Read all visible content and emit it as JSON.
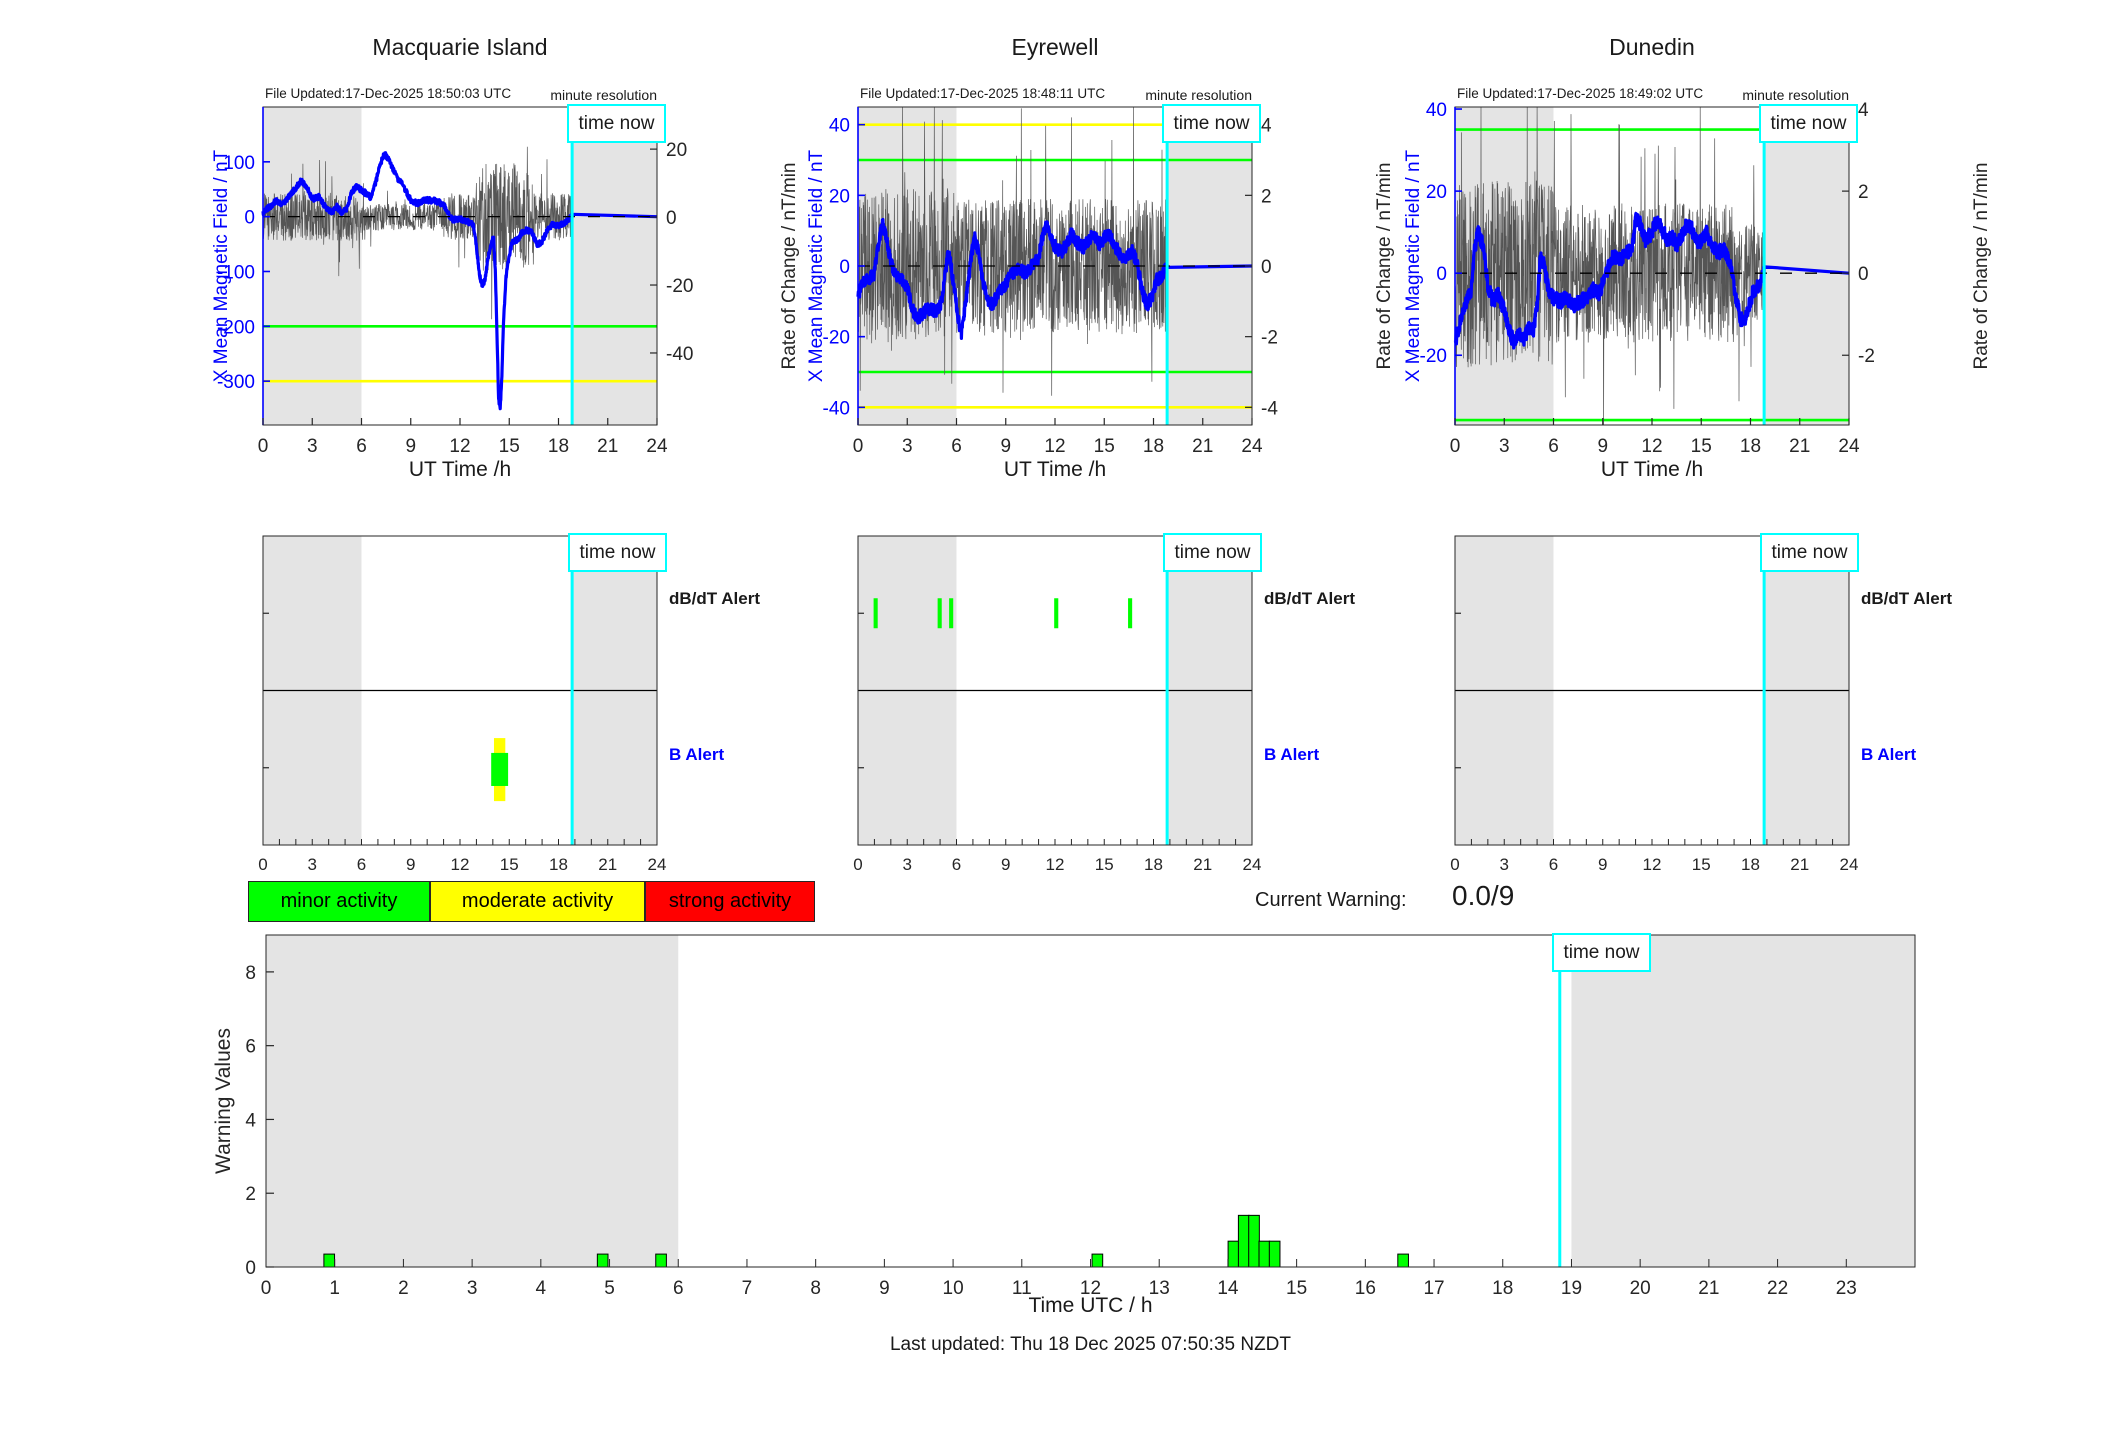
{
  "chart_data": {
    "type": [
      "line",
      "line",
      "line",
      "bar"
    ],
    "time_now_label": "time now",
    "stations": [
      {
        "title": "Macquarie Island",
        "file_updated": "File Updated:17-Dec-2025 18:50:03 UTC",
        "resolution_note": "minute resolution",
        "time_now_hour": 18.83,
        "x_axis": {
          "label": "UT Time /h",
          "min": 0,
          "max": 24,
          "ticks": [
            0,
            3,
            6,
            9,
            12,
            15,
            18,
            21,
            24
          ]
        },
        "left_axis": {
          "label": "X Mean Magnetic Field / nT",
          "color": "#0000ff",
          "min": -380,
          "max": 200,
          "ticks": [
            100,
            0,
            -100,
            -200,
            -300
          ]
        },
        "right_axis": {
          "label": "Rate of Change / nT/min",
          "min": -61.2,
          "max": 32.4,
          "ticks": [
            20,
            0,
            -20,
            -40
          ]
        },
        "shaded_hours": [
          [
            0,
            6
          ],
          [
            18.83,
            24
          ]
        ],
        "thresholds": [
          {
            "value": -200,
            "color": "#00ff00"
          },
          {
            "value": -300,
            "color": "#ffff00"
          }
        ],
        "series_blue": [
          [
            0,
            8
          ],
          [
            0.4,
            18
          ],
          [
            0.8,
            28
          ],
          [
            1.2,
            22
          ],
          [
            1.6,
            38
          ],
          [
            2,
            52
          ],
          [
            2.3,
            65
          ],
          [
            2.6,
            58
          ],
          [
            3,
            32
          ],
          [
            3.4,
            36
          ],
          [
            3.8,
            18
          ],
          [
            4.2,
            8
          ],
          [
            4.5,
            18
          ],
          [
            4.8,
            8
          ],
          [
            5.1,
            14
          ],
          [
            5.4,
            45
          ],
          [
            5.7,
            55
          ],
          [
            6,
            48
          ],
          [
            6.3,
            42
          ],
          [
            6.6,
            34
          ],
          [
            7,
            78
          ],
          [
            7.2,
            100
          ],
          [
            7.4,
            115
          ],
          [
            7.6,
            106
          ],
          [
            7.9,
            88
          ],
          [
            8.2,
            70
          ],
          [
            8.5,
            58
          ],
          [
            9,
            30
          ],
          [
            9.4,
            24
          ],
          [
            9.8,
            30
          ],
          [
            10.2,
            30
          ],
          [
            10.6,
            28
          ],
          [
            11,
            22
          ],
          [
            11.3,
            4
          ],
          [
            11.6,
            -6
          ],
          [
            12,
            -4
          ],
          [
            12.4,
            -8
          ],
          [
            12.8,
            -14
          ],
          [
            13,
            -55
          ],
          [
            13.2,
            -108
          ],
          [
            13.35,
            -125
          ],
          [
            13.5,
            -118
          ],
          [
            13.7,
            -78
          ],
          [
            13.9,
            -48
          ],
          [
            14.05,
            -38
          ],
          [
            14.15,
            -95
          ],
          [
            14.25,
            -210
          ],
          [
            14.35,
            -330
          ],
          [
            14.45,
            -352
          ],
          [
            14.55,
            -290
          ],
          [
            14.65,
            -190
          ],
          [
            14.8,
            -110
          ],
          [
            15,
            -70
          ],
          [
            15.2,
            -45
          ],
          [
            15.5,
            -42
          ],
          [
            15.8,
            -28
          ],
          [
            16.1,
            -24
          ],
          [
            16.4,
            -30
          ],
          [
            16.7,
            -52
          ],
          [
            17,
            -45
          ],
          [
            17.3,
            -26
          ],
          [
            17.6,
            -14
          ],
          [
            18,
            -16
          ],
          [
            18.4,
            -10
          ],
          [
            18.83,
            0
          ]
        ],
        "blue_jitter": 5,
        "noise_envelope": [
          [
            0,
            6,
            7
          ],
          [
            6,
            11,
            4
          ],
          [
            11,
            13,
            7
          ],
          [
            13,
            16.5,
            16
          ],
          [
            16.5,
            18.83,
            7
          ]
        ],
        "alerts": {
          "dbdt_label": "dB/dT Alert",
          "b_label": "B Alert",
          "dbdt_marks": [],
          "b_marks": [
            {
              "start": 14.07,
              "end": 14.76,
              "color": "#ffff00",
              "y0": 0.654,
              "y1": 0.858
            },
            {
              "start": 13.9,
              "end": 14.93,
              "color": "#00ff00",
              "y0": 0.702,
              "y1": 0.809
            }
          ]
        }
      },
      {
        "title": "Eyrewell",
        "file_updated": "File Updated:17-Dec-2025 18:48:11 UTC",
        "resolution_note": "minute resolution",
        "time_now_hour": 18.83,
        "x_axis": {
          "label": "UT Time /h",
          "min": 0,
          "max": 24,
          "ticks": [
            0,
            3,
            6,
            9,
            12,
            15,
            18,
            21,
            24
          ]
        },
        "left_axis": {
          "label": "X Mean Magnetic Field / nT",
          "color": "#0000ff",
          "min": -45,
          "max": 45,
          "ticks": [
            40,
            20,
            0,
            -20,
            -40
          ]
        },
        "right_axis": {
          "label": "Rate of Change / nT/min",
          "min": -4.5,
          "max": 4.5,
          "ticks": [
            4,
            2,
            0,
            -2,
            -4
          ]
        },
        "shaded_hours": [
          [
            0,
            6
          ],
          [
            18.83,
            24
          ]
        ],
        "thresholds": [
          {
            "value": 40,
            "color": "#ffff00"
          },
          {
            "value": 30,
            "color": "#00ff00"
          },
          {
            "value": -30,
            "color": "#00ff00"
          },
          {
            "value": -40,
            "color": "#ffff00"
          }
        ],
        "series_blue": [
          [
            0,
            -8
          ],
          [
            0.3,
            -5
          ],
          [
            0.6,
            -4
          ],
          [
            1,
            -2
          ],
          [
            1.3,
            8
          ],
          [
            1.5,
            12
          ],
          [
            1.7,
            9
          ],
          [
            2,
            1
          ],
          [
            2.3,
            -3
          ],
          [
            2.7,
            -4
          ],
          [
            3,
            -6
          ],
          [
            3.3,
            -12
          ],
          [
            3.6,
            -15
          ],
          [
            4,
            -13
          ],
          [
            4.4,
            -12
          ],
          [
            4.8,
            -13
          ],
          [
            5.1,
            -10
          ],
          [
            5.3,
            -3
          ],
          [
            5.5,
            4
          ],
          [
            5.7,
            -1
          ],
          [
            5.9,
            -8
          ],
          [
            6.1,
            -15
          ],
          [
            6.3,
            -19
          ],
          [
            6.6,
            -9
          ],
          [
            6.9,
            3
          ],
          [
            7.1,
            8
          ],
          [
            7.3,
            5
          ],
          [
            7.6,
            -4
          ],
          [
            7.9,
            -10
          ],
          [
            8.2,
            -11
          ],
          [
            8.5,
            -8
          ],
          [
            9,
            -5
          ],
          [
            9.4,
            -2
          ],
          [
            9.8,
            -1
          ],
          [
            10.2,
            -2
          ],
          [
            10.6,
            0
          ],
          [
            11,
            2
          ],
          [
            11.3,
            10
          ],
          [
            11.5,
            12
          ],
          [
            11.8,
            7
          ],
          [
            12.1,
            5
          ],
          [
            12.4,
            4
          ],
          [
            12.7,
            6
          ],
          [
            13,
            9
          ],
          [
            13.3,
            7
          ],
          [
            13.7,
            5
          ],
          [
            14,
            7
          ],
          [
            14.3,
            9
          ],
          [
            14.7,
            6
          ],
          [
            15,
            8
          ],
          [
            15.3,
            9
          ],
          [
            15.6,
            6
          ],
          [
            16,
            3
          ],
          [
            16.3,
            2
          ],
          [
            16.7,
            4
          ],
          [
            17,
            1
          ],
          [
            17.3,
            -7
          ],
          [
            17.6,
            -11
          ],
          [
            17.9,
            -9
          ],
          [
            18.2,
            -4
          ],
          [
            18.5,
            -3
          ],
          [
            18.83,
            0
          ]
        ],
        "blue_jitter": 1.8,
        "noise_envelope": [
          [
            0,
            6,
            2.2
          ],
          [
            6,
            18.83,
            1.9
          ]
        ],
        "alerts": {
          "dbdt_label": "dB/dT Alert",
          "b_label": "B Alert",
          "dbdt_marks": [
            {
              "start": 0.95,
              "end": 1.2
            },
            {
              "start": 4.85,
              "end": 5.1
            },
            {
              "start": 5.55,
              "end": 5.8
            },
            {
              "start": 11.95,
              "end": 12.2
            },
            {
              "start": 16.45,
              "end": 16.7
            }
          ],
          "b_marks": []
        }
      },
      {
        "title": "Dunedin",
        "file_updated": "File Updated:17-Dec-2025 18:49:02 UTC",
        "resolution_note": "minute resolution",
        "time_now_hour": 18.83,
        "x_axis": {
          "label": "UT Time /h",
          "min": 0,
          "max": 24,
          "ticks": [
            0,
            3,
            6,
            9,
            12,
            15,
            18,
            21,
            24
          ]
        },
        "left_axis": {
          "label": "X Mean Magnetic Field / nT",
          "color": "#0000ff",
          "min": -37,
          "max": 40.5,
          "ticks": [
            40,
            20,
            0,
            -20
          ]
        },
        "right_axis": {
          "label": "Rate of Change / nT/min",
          "min": -3.7,
          "max": 4.05,
          "ticks": [
            4,
            2,
            0,
            -2
          ]
        },
        "shaded_hours": [
          [
            0,
            6
          ],
          [
            18.83,
            24
          ]
        ],
        "thresholds": [
          {
            "value": 35,
            "color": "#00ff00"
          },
          {
            "value": -35.8,
            "color": "#00ff00"
          }
        ],
        "series_blue": [
          [
            0,
            -17
          ],
          [
            0.3,
            -12
          ],
          [
            0.6,
            -8
          ],
          [
            1,
            -4
          ],
          [
            1.2,
            6
          ],
          [
            1.4,
            10
          ],
          [
            1.7,
            7
          ],
          [
            2,
            -3
          ],
          [
            2.3,
            -7
          ],
          [
            2.6,
            -5
          ],
          [
            3,
            -9
          ],
          [
            3.3,
            -14
          ],
          [
            3.6,
            -17
          ],
          [
            3.9,
            -15
          ],
          [
            4.2,
            -16
          ],
          [
            4.5,
            -13
          ],
          [
            4.8,
            -14
          ],
          [
            5,
            -8
          ],
          [
            5.2,
            4
          ],
          [
            5.4,
            2
          ],
          [
            5.7,
            -4
          ],
          [
            6,
            -6
          ],
          [
            6.4,
            -7
          ],
          [
            6.8,
            -6
          ],
          [
            7.2,
            -8
          ],
          [
            7.6,
            -7
          ],
          [
            8,
            -6
          ],
          [
            8.4,
            -4
          ],
          [
            8.8,
            -5
          ],
          [
            9.2,
            0
          ],
          [
            9.6,
            4
          ],
          [
            10,
            3
          ],
          [
            10.4,
            5
          ],
          [
            10.8,
            6
          ],
          [
            11,
            13
          ],
          [
            11.3,
            12
          ],
          [
            11.6,
            8
          ],
          [
            12,
            10
          ],
          [
            12.3,
            13
          ],
          [
            12.6,
            11
          ],
          [
            12.9,
            8
          ],
          [
            13.2,
            9
          ],
          [
            13.5,
            7
          ],
          [
            13.8,
            9
          ],
          [
            14.1,
            12
          ],
          [
            14.4,
            11
          ],
          [
            14.7,
            8
          ],
          [
            15,
            8
          ],
          [
            15.3,
            10
          ],
          [
            15.6,
            7
          ],
          [
            16,
            5
          ],
          [
            16.4,
            6
          ],
          [
            16.8,
            2
          ],
          [
            17.1,
            -6
          ],
          [
            17.4,
            -11
          ],
          [
            17.6,
            -12
          ],
          [
            17.9,
            -8
          ],
          [
            18.2,
            -4
          ],
          [
            18.5,
            -3
          ],
          [
            18.83,
            0
          ]
        ],
        "blue_jitter": 1.8,
        "noise_envelope": [
          [
            0,
            6,
            2.3
          ],
          [
            6,
            17,
            1.7
          ],
          [
            17,
            18.83,
            1.2
          ]
        ],
        "alerts": {
          "dbdt_label": "dB/dT Alert",
          "b_label": "B Alert",
          "dbdt_marks": [],
          "b_marks": []
        }
      }
    ],
    "alert_panel_x_ticks": [
      0,
      3,
      6,
      9,
      12,
      15,
      18,
      21,
      24
    ],
    "legend": [
      {
        "label": "minor activity",
        "color": "#00ff00"
      },
      {
        "label": "moderate activity",
        "color": "#ffff00"
      },
      {
        "label": "strong activity",
        "color": "#ff0000"
      }
    ],
    "current_warning": {
      "label": "Current Warning:",
      "value": "0.0/9"
    },
    "warning_chart": {
      "type": "bar",
      "ylabel": "Warning Values",
      "xlabel": "Time UTC / h",
      "ylim": [
        0,
        9
      ],
      "y_ticks": [
        0,
        2,
        4,
        6,
        8
      ],
      "xlim": [
        0,
        24
      ],
      "x_tick_labels": [
        0,
        1,
        2,
        3,
        4,
        5,
        6,
        7,
        8,
        9,
        10,
        11,
        12,
        13,
        14,
        15,
        16,
        17,
        18,
        19,
        20,
        21,
        22,
        23
      ],
      "time_now_hour": 18.83,
      "time_now_label": "time now",
      "shaded_hours": [
        [
          0,
          6
        ],
        [
          19,
          24
        ]
      ],
      "bar_color": "#00ff00",
      "bar_width_hours": 0.155,
      "bars": [
        {
          "hour": 0.92,
          "value": 0.35
        },
        {
          "hour": 4.9,
          "value": 0.35
        },
        {
          "hour": 5.75,
          "value": 0.35
        },
        {
          "hour": 12.1,
          "value": 0.35
        },
        {
          "hour": 14.08,
          "value": 0.7
        },
        {
          "hour": 14.23,
          "value": 1.4
        },
        {
          "hour": 14.38,
          "value": 1.4
        },
        {
          "hour": 14.53,
          "value": 0.7
        },
        {
          "hour": 14.68,
          "value": 0.7
        },
        {
          "hour": 16.55,
          "value": 0.35
        }
      ]
    }
  },
  "footer": {
    "last_updated": "Last updated: Thu 18 Dec 2025 07:50:35 NZDT"
  }
}
